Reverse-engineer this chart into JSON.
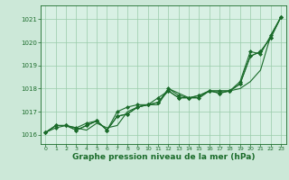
{
  "xlabel": "Graphe pression niveau de la mer (hPa)",
  "background_color": "#cce8d8",
  "plot_bg_color": "#d8f0e4",
  "grid_color": "#99ccaa",
  "line_color": "#1a6b2a",
  "marker_color": "#1a6b2a",
  "ylim": [
    1015.6,
    1021.6
  ],
  "xlim": [
    -0.5,
    23.5
  ],
  "yticks": [
    1016,
    1017,
    1018,
    1019,
    1020,
    1021
  ],
  "xticks": [
    0,
    1,
    2,
    3,
    4,
    5,
    6,
    7,
    8,
    9,
    10,
    11,
    12,
    13,
    14,
    15,
    16,
    17,
    18,
    19,
    20,
    21,
    22,
    23
  ],
  "series": [
    [
      1016.1,
      1016.4,
      1016.4,
      1016.3,
      1016.2,
      1016.5,
      1016.3,
      1016.4,
      1017.0,
      1017.2,
      1017.3,
      1017.3,
      1018.0,
      1017.8,
      1017.6,
      1017.6,
      1017.9,
      1017.9,
      1017.9,
      1018.0,
      1018.3,
      1018.8,
      1020.3,
      1021.1
    ],
    [
      1016.1,
      1016.4,
      1016.4,
      1016.2,
      1016.4,
      1016.6,
      1016.2,
      1016.8,
      1016.9,
      1017.2,
      1017.3,
      1017.6,
      1017.9,
      1017.6,
      1017.6,
      1017.7,
      1017.9,
      1017.8,
      1017.9,
      1018.2,
      1019.4,
      1019.6,
      1020.2,
      1021.1
    ],
    [
      1016.1,
      1016.4,
      1016.4,
      1016.2,
      1016.4,
      1016.6,
      1016.2,
      1016.8,
      1016.9,
      1017.2,
      1017.3,
      1017.4,
      1017.9,
      1017.6,
      1017.6,
      1017.7,
      1017.9,
      1017.8,
      1017.9,
      1018.2,
      1019.4,
      1019.6,
      1020.2,
      1021.1
    ],
    [
      1016.1,
      1016.3,
      1016.4,
      1016.3,
      1016.5,
      1016.6,
      1016.2,
      1017.0,
      1017.2,
      1017.3,
      1017.3,
      1017.4,
      1018.0,
      1017.7,
      1017.6,
      1017.6,
      1017.9,
      1017.9,
      1017.9,
      1018.3,
      1019.6,
      1019.5,
      1020.3,
      1021.1
    ]
  ]
}
